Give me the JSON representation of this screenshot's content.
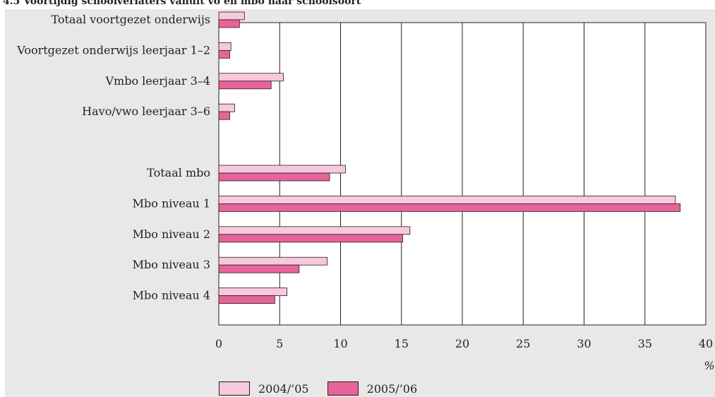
{
  "title": "4.5 Voortijdig schoolverlaters vanuit vo en mbo naar schoolsoort",
  "colors": {
    "panel_bg": "#e8e8e9",
    "plot_bg": "#ffffff",
    "series_2004": "#f8c8dd",
    "series_2005": "#e7639a",
    "text": "#231f20"
  },
  "chart_data": {
    "type": "bar",
    "orientation": "horizontal",
    "categories": [
      "Totaal voortgezet onderwijs",
      "Voortgezet onderwijs leerjaar 1–2",
      "Vmbo leerjaar 3–4",
      "Havo/vwo leerjaar 3–6",
      "",
      "Totaal mbo",
      "Mbo niveau 1",
      "Mbo niveau 2",
      "Mbo niveau 3",
      "Mbo niveau 4"
    ],
    "series": [
      {
        "name": "2004/’05",
        "values": [
          2.1,
          1.0,
          5.3,
          1.3,
          null,
          10.4,
          37.5,
          15.7,
          8.9,
          5.6
        ]
      },
      {
        "name": "2005/’06",
        "values": [
          1.7,
          0.9,
          4.3,
          0.9,
          null,
          9.1,
          37.9,
          15.1,
          6.6,
          4.6
        ]
      }
    ],
    "xlabel": "%",
    "xlim": [
      0,
      40
    ],
    "xticks": [
      0,
      5,
      10,
      15,
      20,
      25,
      30,
      35,
      40
    ],
    "grid": "vertical",
    "legend": "bottom"
  }
}
